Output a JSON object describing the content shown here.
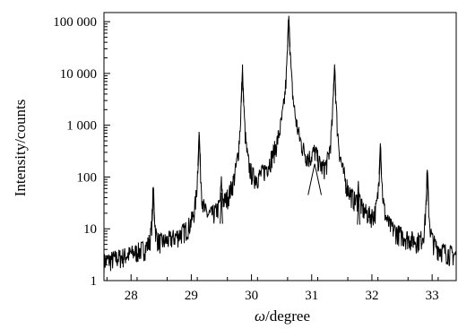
{
  "chart_data": {
    "type": "line",
    "title": "",
    "xlabel": {
      "symbol": "ω",
      "unit": "/degree"
    },
    "ylabel": "Intensity/counts",
    "xlim": [
      27.55,
      33.4
    ],
    "ylim": [
      1,
      150000
    ],
    "yscale": "log",
    "grid": false,
    "legend": "none",
    "x_ticks": [
      {
        "value": 28,
        "label": "28"
      },
      {
        "value": 29,
        "label": "29"
      },
      {
        "value": 30,
        "label": "30"
      },
      {
        "value": 31,
        "label": "31"
      },
      {
        "value": 32,
        "label": "32"
      },
      {
        "value": 33,
        "label": "33"
      }
    ],
    "y_ticks": [
      {
        "value": 1,
        "label": "1"
      },
      {
        "value": 10,
        "label": "10"
      },
      {
        "value": 100,
        "label": "100"
      },
      {
        "value": 1000,
        "label": "1 000"
      },
      {
        "value": 10000,
        "label": "10 000"
      },
      {
        "value": 100000,
        "label": "100 000"
      }
    ],
    "series": [
      {
        "color": "#000000",
        "peaks": [
          {
            "x": 28.37,
            "y": 55
          },
          {
            "x": 29.13,
            "y": 650
          },
          {
            "x": 29.5,
            "y": 50
          },
          {
            "x": 29.85,
            "y": 11000
          },
          {
            "x": 30.62,
            "y": 130000
          },
          {
            "x": 31.05,
            "y": 180
          },
          {
            "x": 31.38,
            "y": 15000
          },
          {
            "x": 31.78,
            "y": 48
          },
          {
            "x": 32.14,
            "y": 450
          },
          {
            "x": 32.92,
            "y": 115
          }
        ]
      }
    ]
  }
}
